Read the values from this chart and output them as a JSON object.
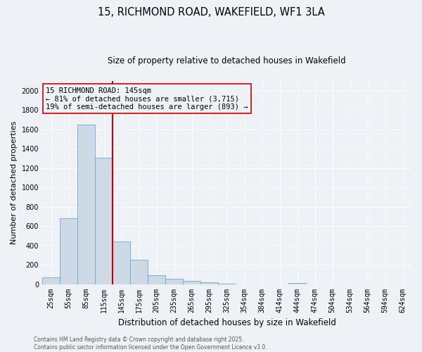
{
  "title_line1": "15, RICHMOND ROAD, WAKEFIELD, WF1 3LA",
  "title_line2": "Size of property relative to detached houses in Wakefield",
  "xlabel": "Distribution of detached houses by size in Wakefield",
  "ylabel": "Number of detached properties",
  "bar_color": "#cdd9e5",
  "bar_edge_color": "#6aaad4",
  "vline_color": "#cc0000",
  "vline_x_index": 4,
  "categories": [
    "25sqm",
    "55sqm",
    "85sqm",
    "115sqm",
    "145sqm",
    "175sqm",
    "205sqm",
    "235sqm",
    "265sqm",
    "295sqm",
    "325sqm",
    "354sqm",
    "384sqm",
    "414sqm",
    "444sqm",
    "474sqm",
    "504sqm",
    "534sqm",
    "564sqm",
    "594sqm",
    "624sqm"
  ],
  "values": [
    70,
    680,
    1650,
    1310,
    440,
    250,
    95,
    55,
    30,
    18,
    5,
    0,
    0,
    0,
    8,
    0,
    0,
    0,
    0,
    0,
    0
  ],
  "ylim": [
    0,
    2100
  ],
  "yticks": [
    0,
    200,
    400,
    600,
    800,
    1000,
    1200,
    1400,
    1600,
    1800,
    2000
  ],
  "annotation_text": "15 RICHMOND ROAD: 145sqm\n← 81% of detached houses are smaller (3,715)\n19% of semi-detached houses are larger (893) →",
  "footer_line1": "Contains HM Land Registry data © Crown copyright and database right 2025.",
  "footer_line2": "Contains public sector information licensed under the Open Government Licence v3.0.",
  "bg_color": "#eef2f7",
  "grid_color": "#ffffff",
  "title_fontsize": 10.5,
  "subtitle_fontsize": 8.5,
  "ylabel_fontsize": 8,
  "xlabel_fontsize": 8.5,
  "tick_fontsize": 7,
  "annotation_fontsize": 7.5,
  "footer_fontsize": 5.5
}
